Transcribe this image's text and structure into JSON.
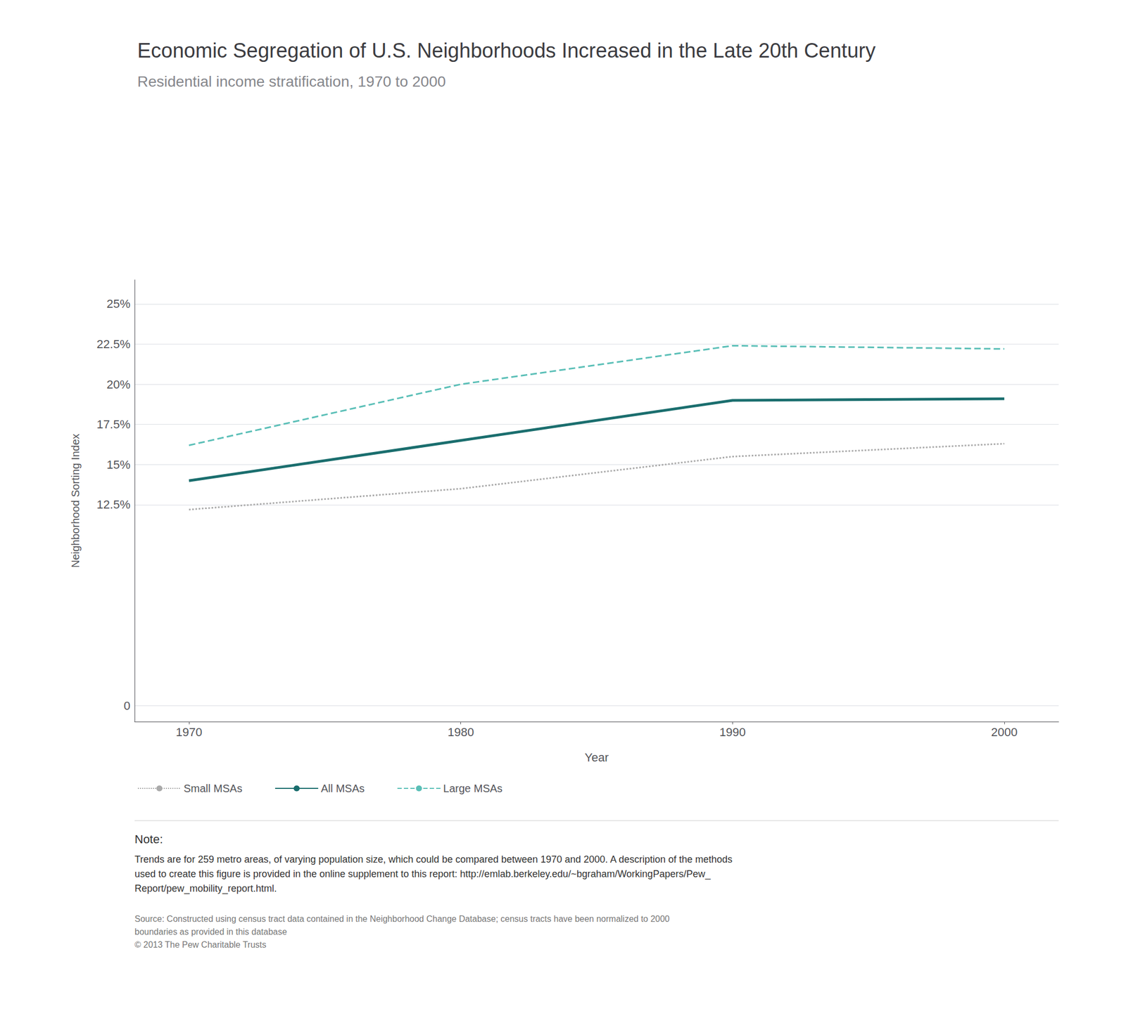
{
  "chart_data": {
    "type": "line",
    "title": "Economic Segregation of U.S. Neighborhoods Increased in the Late 20th Century",
    "subtitle": "Residential income stratification, 1970 to 2000",
    "xlabel": "Year",
    "ylabel": "Neighborhood Sorting Index",
    "x": [
      1970,
      1980,
      1990,
      2000
    ],
    "series": [
      {
        "name": "Small MSAs",
        "color": "#aaaaaa",
        "line_style": "dotted",
        "values": [
          0.122,
          0.135,
          0.155,
          0.163
        ]
      },
      {
        "name": "All MSAs",
        "color": "#1a6e6e",
        "line_style": "solid",
        "values": [
          0.14,
          0.165,
          0.19,
          0.191
        ]
      },
      {
        "name": "Large MSAs",
        "color": "#5abfb7",
        "line_style": "dashed",
        "values": [
          0.162,
          0.2,
          0.224,
          0.222
        ]
      }
    ],
    "xlim": [
      1968,
      2002
    ],
    "xticks": [
      1970,
      1980,
      1990,
      2000
    ],
    "ylim": [
      -0.01,
      0.265
    ],
    "yticks": [
      0,
      {
        "value": 0.125,
        "label": "12.5%"
      },
      {
        "value": 0.15,
        "label": "15%"
      },
      {
        "value": 0.175,
        "label": "17.5%"
      },
      {
        "value": 0.2,
        "label": "20%"
      },
      {
        "value": 0.225,
        "label": "22.5%"
      },
      {
        "value": 0.25,
        "label": "25%"
      }
    ],
    "grid": true,
    "legend": "bottom",
    "annotations": [
      "Note:",
      "Trends are for 259 metro areas, of varying population size, which could be compared between 1970 and 2000. A description of the methods\nused to create this figure is provided in the online supplement to this report: http://emlab.berkeley.edu/~bgraham/WorkingPapers/Pew_\nReport/pew_mobility_report.html.",
      "Source: Constructed using census tract data contained in the Neighborhood Change Database; census tracts have been normalized to 2000\nboundaries as provided in this database\n© 2013 The Pew Charitable Trusts"
    ]
  }
}
